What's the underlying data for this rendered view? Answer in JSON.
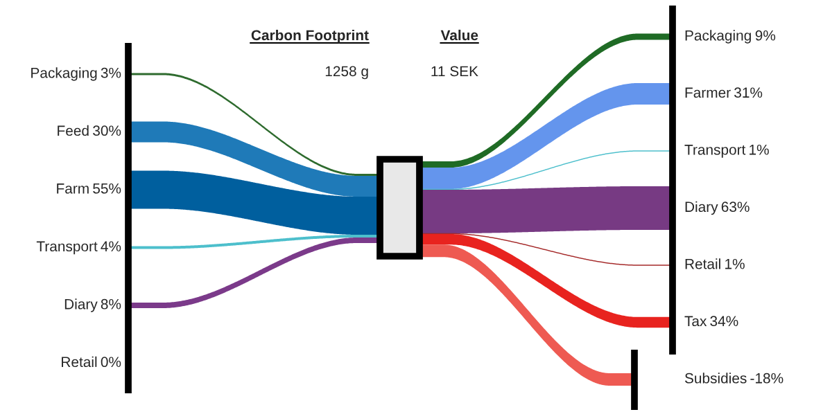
{
  "chart_data": [
    {
      "type": "other",
      "title": "Carbon Footprint",
      "subtitle": "1258 g",
      "categories": [
        "Packaging",
        "Feed",
        "Farm",
        "Transport",
        "Diary",
        "Retail"
      ],
      "values": [
        3,
        30,
        55,
        4,
        8,
        0
      ],
      "value_labels": [
        "3%",
        "30%",
        "55%",
        "4%",
        "8%",
        "0%"
      ],
      "colors": [
        "#2e6b2e",
        "#1f7ab8",
        "#005f9e",
        "#4dbfcc",
        "#7b3a8a",
        "#f4f4f4"
      ]
    },
    {
      "type": "other",
      "title": "Value",
      "subtitle": "11 SEK",
      "categories": [
        "Packaging",
        "Farmer",
        "Transport",
        "Diary",
        "Retail",
        "Tax",
        "Subsidies"
      ],
      "values": [
        9,
        31,
        1,
        63,
        1,
        34,
        -18
      ],
      "value_labels": [
        "9%",
        "31%",
        "1%",
        "63%",
        "1%",
        "34%",
        "-18%"
      ],
      "colors": [
        "#1f6b25",
        "#6495ed",
        "#4dbfcc",
        "#773a83",
        "#a52a2a",
        "#e8231f",
        "#ee5a52"
      ]
    }
  ]
}
